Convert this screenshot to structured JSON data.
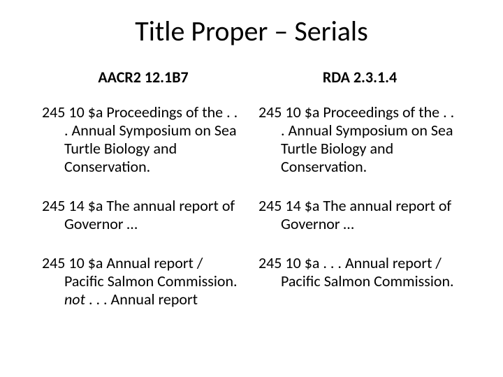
{
  "title": "Title Proper – Serials",
  "columns": {
    "left": {
      "header": "AACR2  12.1B7",
      "entries": [
        {
          "text": "245 10 $a Proceedings of the . . . Annual Symposium on Sea Turtle Biology and Conservation."
        },
        {
          "text": "245 14 $a The annual report of Governor …"
        },
        {
          "text": "245 10 $a Annual report / Pacific Salmon Commission.",
          "suffix_italic": "not",
          "suffix_plain": "   . . . Annual report"
        }
      ]
    },
    "right": {
      "header": "RDA  2.3.1.4",
      "entries": [
        {
          "text": "245 10 $a Proceedings of the . . . Annual Symposium on Sea Turtle Biology and Conservation."
        },
        {
          "text": "245 14 $a The annual report of Governor …"
        },
        {
          "text": "245 10 $a . . . Annual report / Pacific Salmon Commission."
        }
      ]
    }
  },
  "style": {
    "background_color": "#ffffff",
    "text_color": "#000000",
    "title_fontsize": 40,
    "header_fontsize": 22,
    "body_fontsize": 22,
    "font_family": "Calibri"
  }
}
